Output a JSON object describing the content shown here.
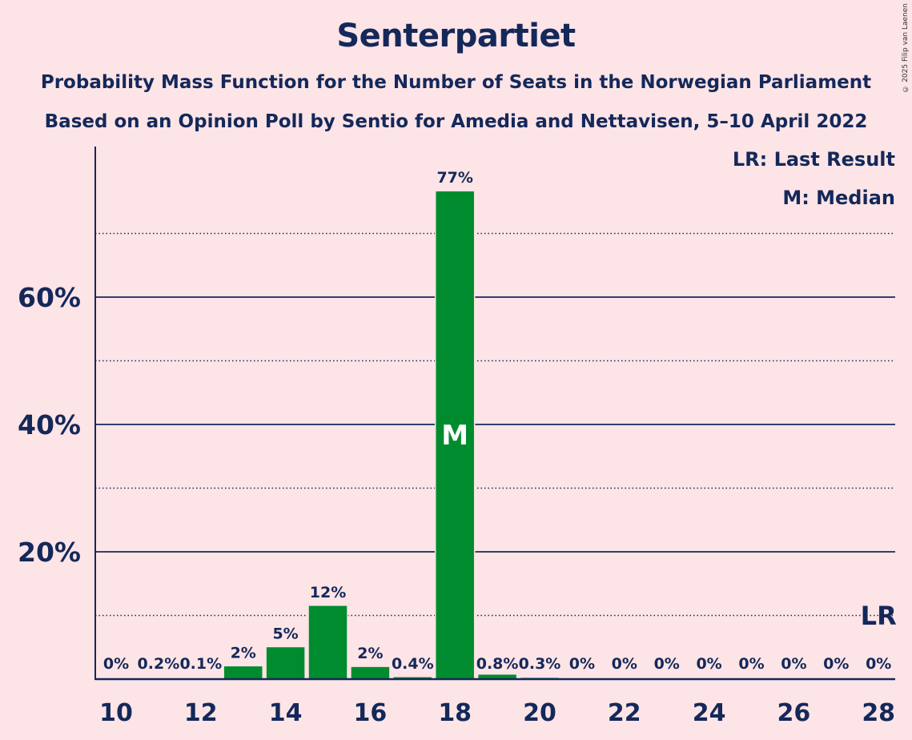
{
  "chart_data": {
    "type": "bar",
    "title": "Senterpartiet",
    "subtitle_1": "Probability Mass Function for the Number of Seats in the Norwegian Parliament",
    "subtitle_2": "Based on an Opinion Poll by Sentio for Amedia and Nettavisen, 5–10 April 2022",
    "x": [
      10,
      11,
      12,
      13,
      14,
      15,
      16,
      17,
      18,
      19,
      20,
      21,
      22,
      23,
      24,
      25,
      26,
      27,
      28
    ],
    "values": [
      0,
      0.2,
      0.1,
      2.1,
      5.1,
      11.6,
      2.0,
      0.4,
      76.7,
      0.8,
      0.3,
      0,
      0,
      0,
      0,
      0,
      0,
      0,
      0
    ],
    "data_labels": [
      "0%",
      "0.2%",
      "0.1%",
      "2%",
      "5%",
      "12%",
      "2%",
      "0.4%",
      "77%",
      "0.8%",
      "0.3%",
      "0%",
      "0%",
      "0%",
      "0%",
      "0%",
      "0%",
      "0%",
      "0%"
    ],
    "x_tick_labels": [
      "10",
      "12",
      "14",
      "16",
      "18",
      "20",
      "22",
      "24",
      "26",
      "28"
    ],
    "y_tick_labels": [
      "20%",
      "40%",
      "60%"
    ],
    "ylim": [
      0,
      82
    ],
    "grid": {
      "solid": [
        20,
        40,
        60
      ],
      "dotted": [
        10,
        30,
        50,
        70
      ]
    },
    "median_seat": 18,
    "median_marker": "M",
    "last_result_seat": 28,
    "last_result_marker": "LR",
    "legend": [
      "LR: Last Result",
      "M: Median"
    ],
    "legend_placement": "top-right",
    "bar_color": "#008c2e",
    "axis_color": "#14285a"
  },
  "copyright": "© 2025 Filip van Laenen"
}
